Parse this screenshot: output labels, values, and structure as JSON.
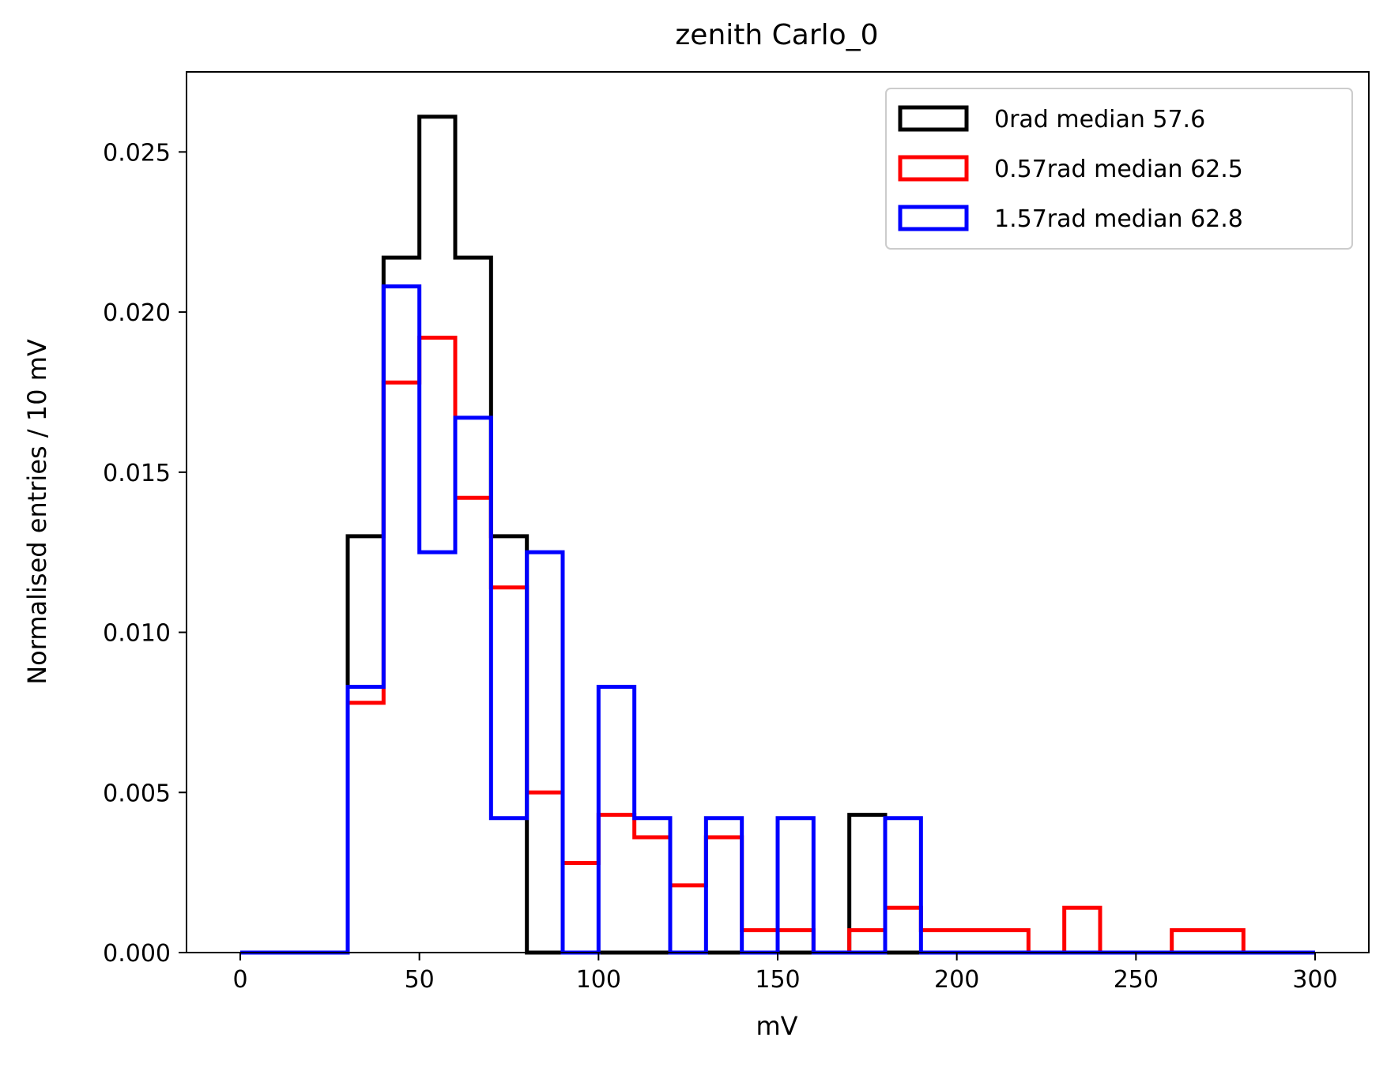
{
  "chart_data": {
    "type": "histogram-step",
    "title": "zenith Carlo_0",
    "xlabel": "mV",
    "ylabel": "Normalised entries / 10 mV",
    "xlim": [
      -15,
      315
    ],
    "ylim": [
      0,
      0.0275
    ],
    "xticks": [
      0,
      50,
      100,
      150,
      200,
      250,
      300
    ],
    "yticks": [
      0.0,
      0.005,
      0.01,
      0.015,
      0.02,
      0.025
    ],
    "ytick_labels": [
      "0.000",
      "0.005",
      "0.010",
      "0.015",
      "0.020",
      "0.025"
    ],
    "grid": false,
    "legend_position": "top-right",
    "bin_edges": [
      0,
      10,
      20,
      30,
      40,
      50,
      60,
      70,
      80,
      90,
      100,
      110,
      120,
      130,
      140,
      150,
      160,
      170,
      180,
      190,
      200,
      210,
      220,
      230,
      240,
      250,
      260,
      270,
      280,
      290,
      300
    ],
    "series": [
      {
        "name": "0rad median 57.6",
        "color": "#000000",
        "values": [
          0,
          0,
          0,
          0.013,
          0.0217,
          0.0261,
          0.0217,
          0.013,
          0,
          0,
          0,
          0,
          0,
          0,
          0,
          0,
          0,
          0.0043,
          0,
          0,
          0,
          0,
          0,
          0,
          0,
          0,
          0,
          0,
          0,
          0
        ]
      },
      {
        "name": "0.57rad median 62.5",
        "color": "#ff0000",
        "values": [
          0,
          0,
          0,
          0.0078,
          0.0178,
          0.0192,
          0.0142,
          0.0114,
          0.005,
          0.0028,
          0.0043,
          0.0036,
          0.0021,
          0.0036,
          0.0007,
          0.0007,
          0,
          0.0007,
          0.0014,
          0.0007,
          0.0007,
          0.0007,
          0,
          0.0014,
          0,
          0,
          0.0007,
          0.0007,
          0,
          0
        ]
      },
      {
        "name": "1.57rad median 62.8",
        "color": "#0000ff",
        "values": [
          0,
          0,
          0,
          0.0083,
          0.0208,
          0.0125,
          0.0167,
          0.0042,
          0.0125,
          0,
          0.0083,
          0.0042,
          0,
          0.0042,
          0,
          0.0042,
          0,
          0,
          0.0042,
          0,
          0,
          0,
          0,
          0,
          0,
          0,
          0,
          0,
          0,
          0
        ]
      }
    ]
  }
}
